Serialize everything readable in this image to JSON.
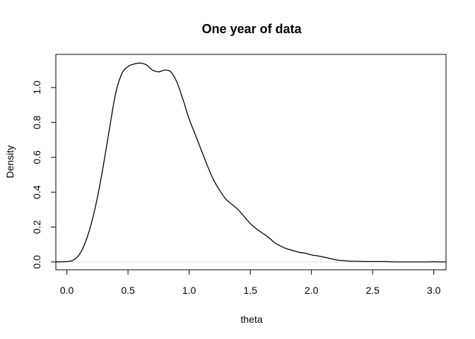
{
  "chart_data": {
    "type": "line",
    "title": "One year of data",
    "xlabel": "theta",
    "ylabel": "Density",
    "xlim": [
      -0.09,
      3.1
    ],
    "ylim": [
      -0.045,
      1.19
    ],
    "xticks": [
      0.0,
      0.5,
      1.0,
      1.5,
      2.0,
      2.5,
      3.0
    ],
    "xtick_labels": [
      "0.0",
      "0.5",
      "1.0",
      "1.5",
      "2.0",
      "2.5",
      "3.0"
    ],
    "yticks": [
      0.0,
      0.2,
      0.4,
      0.6,
      0.8,
      1.0
    ],
    "ytick_labels": [
      "0.0",
      "0.2",
      "0.4",
      "0.6",
      "0.8",
      "1.0"
    ],
    "grid": false,
    "series": [
      {
        "x": [
          -0.09,
          0.0,
          0.05,
          0.1,
          0.15,
          0.2,
          0.25,
          0.3,
          0.35,
          0.4,
          0.45,
          0.5,
          0.55,
          0.6,
          0.65,
          0.7,
          0.75,
          0.8,
          0.85,
          0.9,
          0.95,
          1.0,
          1.05,
          1.1,
          1.15,
          1.2,
          1.25,
          1.3,
          1.35,
          1.4,
          1.45,
          1.5,
          1.55,
          1.6,
          1.65,
          1.7,
          1.75,
          1.8,
          1.85,
          1.9,
          1.95,
          2.0,
          2.05,
          2.1,
          2.15,
          2.2,
          2.25,
          2.3,
          2.35,
          2.4,
          2.45,
          2.5,
          2.55,
          2.6,
          2.65,
          2.7,
          2.75,
          2.8,
          2.85,
          2.9,
          2.95,
          3.0,
          3.05,
          3.1
        ],
        "y": [
          0.0,
          0.002,
          0.01,
          0.04,
          0.11,
          0.22,
          0.37,
          0.56,
          0.77,
          0.97,
          1.08,
          1.12,
          1.135,
          1.14,
          1.13,
          1.1,
          1.09,
          1.1,
          1.09,
          1.03,
          0.93,
          0.82,
          0.73,
          0.64,
          0.55,
          0.47,
          0.41,
          0.36,
          0.33,
          0.3,
          0.26,
          0.22,
          0.19,
          0.165,
          0.14,
          0.11,
          0.09,
          0.075,
          0.065,
          0.055,
          0.05,
          0.04,
          0.035,
          0.028,
          0.02,
          0.012,
          0.008,
          0.005,
          0.004,
          0.003,
          0.002,
          0.002,
          0.002,
          0.002,
          0.001,
          0.0,
          0.0,
          0.0,
          0.0,
          0.0,
          0.0,
          0.001,
          0.0,
          0.0
        ]
      }
    ]
  }
}
